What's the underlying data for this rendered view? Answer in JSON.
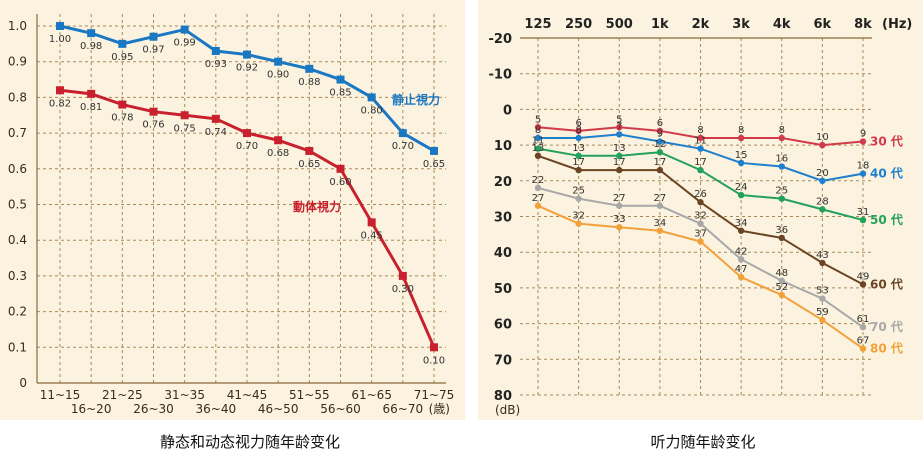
{
  "chart_data": [
    {
      "type": "line",
      "title": "静态和动态视力随年龄变化",
      "xlabel": "歳",
      "ylabel": "",
      "ylim": [
        0,
        1.0
      ],
      "yticks": [
        "0",
        "0.1",
        "0.2",
        "0.3",
        "0.4",
        "0.5",
        "0.6",
        "0.7",
        "0.8",
        "0.9",
        "1.0"
      ],
      "xticks_top": [
        "11~15",
        "21~25",
        "31~35",
        "41~45",
        "51~55",
        "61~65",
        "71~75"
      ],
      "xticks_bottom": [
        "16~20",
        "26~30",
        "36~40",
        "46~50",
        "56~60",
        "66~70"
      ],
      "unit_label": "(歳)",
      "categories": [
        "11~15",
        "16~20",
        "21~25",
        "26~30",
        "31~35",
        "36~40",
        "41~45",
        "46~50",
        "51~55",
        "56~60",
        "61~65",
        "66~70",
        "71~75"
      ],
      "series": [
        {
          "name": "静止視力",
          "color": "#1a78c2",
          "values": [
            1.0,
            0.98,
            0.95,
            0.97,
            0.99,
            0.93,
            0.92,
            0.9,
            0.88,
            0.85,
            0.8,
            0.7,
            0.65
          ],
          "labels": [
            "1.00",
            "0.98",
            "0.95",
            "0.97",
            "0.99",
            "0.93",
            "0.92",
            "0.90",
            "0.88",
            "0.85",
            "0.80",
            "0.70",
            "0.65"
          ]
        },
        {
          "name": "動体視力",
          "color": "#c8202c",
          "values": [
            0.82,
            0.81,
            0.78,
            0.76,
            0.75,
            0.74,
            0.7,
            0.68,
            0.65,
            0.6,
            0.45,
            0.3,
            0.1
          ],
          "labels": [
            "0.82",
            "0.81",
            "0.78",
            "0.76",
            "0.75",
            "0.74",
            "0.70",
            "0.68",
            "0.65",
            "0.60",
            "0.45",
            "0.30",
            "0.10"
          ]
        }
      ]
    },
    {
      "type": "line",
      "title": "听力随年龄变化",
      "xlabel": "",
      "ylabel": "(dB)",
      "ylim": [
        -20,
        80
      ],
      "y_inverted": true,
      "yticks": [
        "-20",
        "-10",
        "0",
        "10",
        "20",
        "30",
        "40",
        "50",
        "60",
        "70",
        "80"
      ],
      "categories": [
        "125",
        "250",
        "500",
        "1k",
        "2k",
        "3k",
        "4k",
        "6k",
        "8k"
      ],
      "x_unit": "(Hz)",
      "series": [
        {
          "name": "30 代",
          "color": "#d23a4a",
          "values": [
            5,
            6,
            5,
            6,
            8,
            8,
            8,
            10,
            9
          ]
        },
        {
          "name": "40 代",
          "color": "#1e7fcc",
          "values": [
            8,
            8,
            7,
            9,
            11,
            15,
            16,
            20,
            18
          ]
        },
        {
          "name": "50 代",
          "color": "#23a05a",
          "values": [
            11,
            13,
            13,
            12,
            17,
            24,
            25,
            28,
            31
          ]
        },
        {
          "name": "60 代",
          "color": "#6b4423",
          "values": [
            13,
            17,
            17,
            17,
            26,
            34,
            36,
            43,
            49
          ]
        },
        {
          "name": "70 代",
          "color": "#a8a8a8",
          "values": [
            22,
            25,
            27,
            27,
            32,
            42,
            48,
            53,
            61
          ]
        },
        {
          "name": "80 代",
          "color": "#f2a13a",
          "values": [
            27,
            32,
            33,
            34,
            37,
            47,
            52,
            59,
            67
          ]
        }
      ]
    }
  ]
}
